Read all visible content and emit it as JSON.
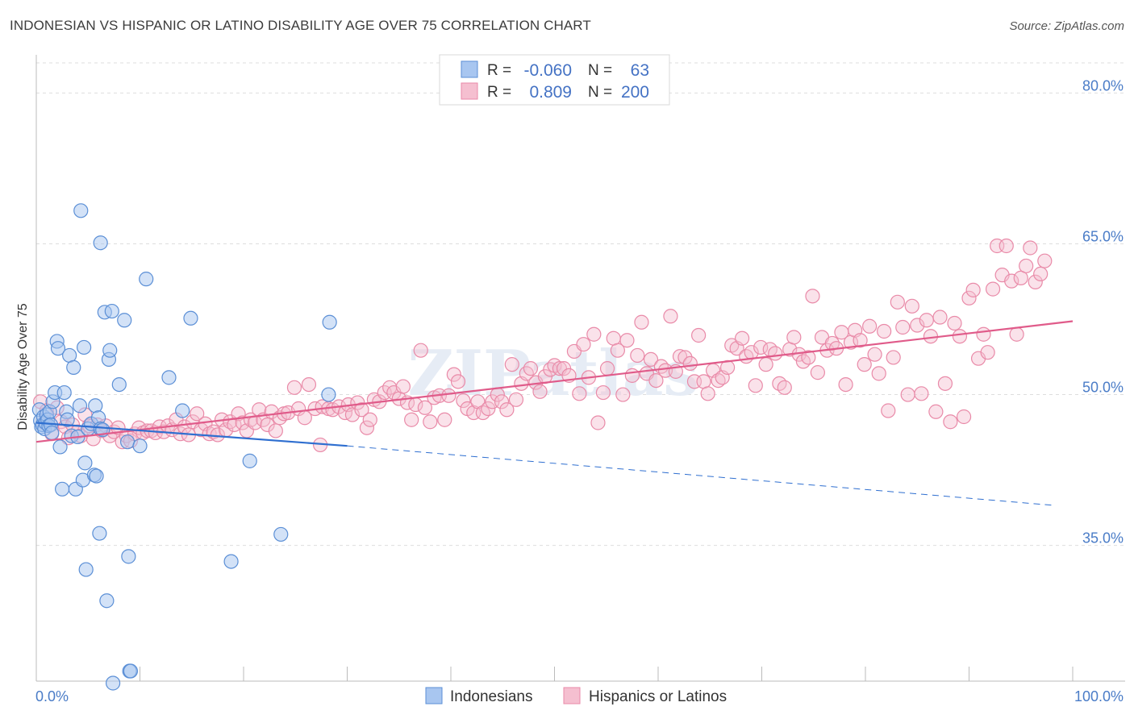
{
  "title": "INDONESIAN VS HISPANIC OR LATINO DISABILITY AGE OVER 75 CORRELATION CHART",
  "source": "Source: ZipAtlas.com",
  "watermark": "ZIPatlas",
  "colors": {
    "blue_fill": "#a8c6f0",
    "blue_stroke": "#5b8fd6",
    "blue_line": "#2f6fd0",
    "pink_fill": "#f5bfd0",
    "pink_stroke": "#e98aa8",
    "pink_line": "#e05b8a",
    "tick_text": "#4a7cc7",
    "grid": "#dddddd"
  },
  "legend": {
    "row1": {
      "r_label": "R =",
      "r_value": "-0.060",
      "n_label": "N =",
      "n_value": "63"
    },
    "row2": {
      "r_label": "R =",
      "r_value": "0.809",
      "n_label": "N =",
      "n_value": "200"
    }
  },
  "bottom_legend": {
    "series1": "Indonesians",
    "series2": "Hispanics or Latinos"
  },
  "chart_data": {
    "type": "scatter",
    "title": "INDONESIAN VS HISPANIC OR LATINO DISABILITY AGE OVER 75 CORRELATION CHART",
    "xlabel": "",
    "ylabel": "Disability Age Over 75",
    "xlim": [
      0,
      100
    ],
    "ylim": [
      21.5,
      83
    ],
    "x_tick_labels": [
      "0.0%",
      "100.0%"
    ],
    "y_ticks": [
      35,
      50,
      65,
      80
    ],
    "y_tick_labels": [
      "35.0%",
      "50.0%",
      "65.0%",
      "80.0%"
    ],
    "grid": "horizontal dashed",
    "legend_position": "top-center",
    "series": [
      {
        "name": "Indonesians",
        "r": -0.06,
        "n": 63,
        "trend": {
          "x0": 0,
          "y0": 47.2,
          "x1": 30,
          "y1": 44.9,
          "x_dashed_end": 98,
          "y_dashed_end": 39.0
        },
        "points": [
          [
            0.3,
            48.5
          ],
          [
            0.4,
            47.4
          ],
          [
            0.5,
            46.8
          ],
          [
            0.6,
            47.0
          ],
          [
            0.7,
            47.8
          ],
          [
            0.8,
            46.6
          ],
          [
            0.9,
            47.2
          ],
          [
            1.0,
            48.0
          ],
          [
            1.1,
            47.5
          ],
          [
            1.2,
            46.9
          ],
          [
            1.3,
            48.3
          ],
          [
            1.4,
            47.0
          ],
          [
            1.5,
            46.2
          ],
          [
            1.6,
            49.3
          ],
          [
            1.8,
            50.2
          ],
          [
            2.0,
            55.3
          ],
          [
            2.1,
            54.6
          ],
          [
            2.3,
            44.8
          ],
          [
            2.5,
            40.6
          ],
          [
            2.7,
            50.2
          ],
          [
            2.9,
            48.3
          ],
          [
            3.0,
            47.5
          ],
          [
            3.2,
            53.9
          ],
          [
            3.4,
            45.9
          ],
          [
            3.6,
            52.7
          ],
          [
            3.8,
            40.6
          ],
          [
            4.0,
            45.8
          ],
          [
            4.2,
            48.9
          ],
          [
            4.3,
            68.3
          ],
          [
            4.5,
            41.5
          ],
          [
            4.6,
            54.7
          ],
          [
            4.7,
            43.2
          ],
          [
            4.8,
            32.6
          ],
          [
            5.0,
            46.6
          ],
          [
            5.3,
            47.1
          ],
          [
            5.6,
            42.0
          ],
          [
            5.7,
            48.9
          ],
          [
            5.8,
            41.9
          ],
          [
            6.0,
            47.7
          ],
          [
            6.2,
            46.6
          ],
          [
            6.1,
            36.2
          ],
          [
            6.2,
            65.1
          ],
          [
            6.4,
            46.5
          ],
          [
            6.6,
            58.2
          ],
          [
            6.8,
            29.5
          ],
          [
            7.0,
            53.5
          ],
          [
            7.1,
            54.4
          ],
          [
            7.3,
            58.3
          ],
          [
            7.4,
            21.3
          ],
          [
            8.0,
            51.0
          ],
          [
            8.5,
            57.4
          ],
          [
            8.8,
            45.3
          ],
          [
            8.9,
            33.9
          ],
          [
            9.0,
            22.5
          ],
          [
            9.1,
            22.5
          ],
          [
            10.0,
            44.9
          ],
          [
            10.6,
            61.5
          ],
          [
            12.8,
            51.7
          ],
          [
            14.1,
            48.4
          ],
          [
            14.9,
            57.6
          ],
          [
            18.8,
            33.4
          ],
          [
            20.6,
            43.4
          ],
          [
            23.6,
            36.1
          ],
          [
            28.3,
            57.2
          ],
          [
            28.2,
            50.0
          ]
        ]
      },
      {
        "name": "Hispanics or Latinos",
        "r": 0.809,
        "n": 200,
        "trend": {
          "x0": 0,
          "y0": 45.3,
          "x1": 100,
          "y1": 57.3
        },
        "points": [
          [
            0.4,
            49.3
          ],
          [
            0.8,
            47.2
          ],
          [
            1.0,
            48.4
          ],
          [
            1.5,
            46.1
          ],
          [
            2.0,
            48.7
          ],
          [
            2.4,
            47.3
          ],
          [
            2.8,
            46.8
          ],
          [
            3.1,
            45.7
          ],
          [
            3.5,
            47.0
          ],
          [
            4.0,
            46.3
          ],
          [
            4.3,
            45.9
          ],
          [
            4.7,
            48.0
          ],
          [
            5.1,
            46.9
          ],
          [
            5.5,
            45.6
          ],
          [
            5.9,
            47.0
          ],
          [
            6.3,
            46.4
          ],
          [
            6.7,
            46.9
          ],
          [
            7.1,
            45.9
          ],
          [
            7.5,
            46.3
          ],
          [
            7.9,
            46.7
          ],
          [
            8.3,
            45.3
          ],
          [
            8.7,
            45.9
          ],
          [
            9.1,
            45.4
          ],
          [
            9.5,
            46.1
          ],
          [
            9.9,
            46.7
          ],
          [
            10.3,
            46.2
          ],
          [
            10.7,
            46.4
          ],
          [
            11.1,
            46.4
          ],
          [
            11.5,
            46.2
          ],
          [
            11.9,
            46.8
          ],
          [
            12.3,
            46.3
          ],
          [
            12.7,
            46.9
          ],
          [
            13.1,
            46.5
          ],
          [
            13.5,
            47.5
          ],
          [
            13.9,
            46.1
          ],
          [
            14.3,
            46.8
          ],
          [
            14.7,
            46.0
          ],
          [
            15.1,
            47.3
          ],
          [
            15.5,
            48.1
          ],
          [
            15.9,
            46.5
          ],
          [
            16.3,
            47.1
          ],
          [
            16.7,
            46.1
          ],
          [
            17.1,
            46.3
          ],
          [
            17.5,
            46.0
          ],
          [
            17.9,
            47.5
          ],
          [
            18.3,
            46.5
          ],
          [
            18.7,
            47.3
          ],
          [
            19.1,
            47.0
          ],
          [
            19.5,
            48.1
          ],
          [
            19.9,
            47.2
          ],
          [
            20.3,
            46.4
          ],
          [
            20.7,
            47.5
          ],
          [
            21.1,
            47.2
          ],
          [
            21.5,
            48.5
          ],
          [
            21.9,
            47.5
          ],
          [
            22.3,
            47.0
          ],
          [
            22.7,
            48.3
          ],
          [
            23.1,
            46.4
          ],
          [
            23.5,
            47.7
          ],
          [
            23.9,
            48.1
          ],
          [
            24.3,
            48.2
          ],
          [
            24.9,
            50.7
          ],
          [
            25.3,
            48.6
          ],
          [
            25.9,
            47.7
          ],
          [
            26.3,
            51.0
          ],
          [
            26.9,
            48.6
          ],
          [
            27.4,
            45.0
          ],
          [
            27.6,
            48.8
          ],
          [
            28.2,
            48.6
          ],
          [
            28.6,
            48.5
          ],
          [
            29.2,
            48.8
          ],
          [
            29.8,
            48.2
          ],
          [
            30.1,
            49.0
          ],
          [
            30.5,
            48.0
          ],
          [
            31.0,
            49.2
          ],
          [
            31.4,
            48.5
          ],
          [
            31.9,
            46.7
          ],
          [
            32.2,
            47.5
          ],
          [
            32.6,
            49.5
          ],
          [
            33.1,
            49.3
          ],
          [
            33.6,
            50.2
          ],
          [
            34.1,
            50.7
          ],
          [
            34.5,
            50.2
          ],
          [
            35.0,
            49.6
          ],
          [
            35.4,
            50.8
          ],
          [
            35.8,
            49.2
          ],
          [
            36.2,
            47.5
          ],
          [
            36.6,
            49.0
          ],
          [
            37.1,
            54.4
          ],
          [
            37.5,
            48.7
          ],
          [
            38.0,
            47.3
          ],
          [
            38.4,
            49.7
          ],
          [
            38.9,
            49.9
          ],
          [
            39.4,
            47.5
          ],
          [
            39.8,
            49.9
          ],
          [
            40.3,
            52.0
          ],
          [
            40.7,
            51.3
          ],
          [
            41.2,
            49.4
          ],
          [
            41.6,
            48.6
          ],
          [
            42.2,
            48.2
          ],
          [
            42.6,
            49.3
          ],
          [
            43.1,
            48.2
          ],
          [
            43.6,
            48.6
          ],
          [
            44.0,
            49.3
          ],
          [
            44.5,
            50.0
          ],
          [
            44.9,
            49.3
          ],
          [
            45.4,
            48.5
          ],
          [
            45.9,
            53.0
          ],
          [
            46.3,
            49.5
          ],
          [
            46.8,
            51.1
          ],
          [
            47.3,
            52.1
          ],
          [
            47.7,
            52.6
          ],
          [
            48.2,
            51.2
          ],
          [
            48.6,
            50.3
          ],
          [
            49.1,
            51.8
          ],
          [
            49.6,
            52.5
          ],
          [
            50.0,
            52.9
          ],
          [
            50.5,
            52.6
          ],
          [
            50.9,
            52.6
          ],
          [
            51.4,
            51.9
          ],
          [
            51.9,
            54.3
          ],
          [
            52.4,
            50.1
          ],
          [
            52.8,
            55.0
          ],
          [
            53.3,
            51.7
          ],
          [
            53.8,
            56.0
          ],
          [
            54.2,
            47.2
          ],
          [
            54.7,
            50.2
          ],
          [
            55.1,
            52.6
          ],
          [
            55.7,
            55.6
          ],
          [
            56.1,
            54.4
          ],
          [
            56.6,
            50.0
          ],
          [
            57.0,
            55.4
          ],
          [
            57.5,
            51.9
          ],
          [
            58.0,
            53.9
          ],
          [
            58.4,
            57.2
          ],
          [
            58.9,
            52.1
          ],
          [
            59.3,
            53.5
          ],
          [
            59.8,
            51.4
          ],
          [
            60.3,
            52.8
          ],
          [
            60.7,
            52.4
          ],
          [
            61.2,
            57.8
          ],
          [
            61.7,
            52.3
          ],
          [
            62.1,
            53.8
          ],
          [
            62.6,
            53.7
          ],
          [
            63.1,
            53.1
          ],
          [
            63.5,
            51.3
          ],
          [
            63.9,
            55.9
          ],
          [
            64.4,
            51.3
          ],
          [
            64.8,
            50.1
          ],
          [
            65.3,
            52.4
          ],
          [
            65.8,
            51.4
          ],
          [
            66.2,
            51.7
          ],
          [
            66.7,
            52.7
          ],
          [
            67.1,
            54.9
          ],
          [
            67.6,
            54.6
          ],
          [
            68.1,
            55.6
          ],
          [
            68.5,
            53.8
          ],
          [
            69.0,
            54.2
          ],
          [
            69.4,
            50.9
          ],
          [
            69.9,
            54.7
          ],
          [
            70.4,
            53.0
          ],
          [
            70.8,
            54.5
          ],
          [
            71.3,
            54.1
          ],
          [
            71.7,
            51.1
          ],
          [
            72.2,
            50.7
          ],
          [
            72.7,
            54.5
          ],
          [
            73.1,
            55.7
          ],
          [
            73.6,
            54.0
          ],
          [
            74.0,
            53.3
          ],
          [
            74.5,
            53.7
          ],
          [
            74.9,
            59.8
          ],
          [
            75.4,
            52.2
          ],
          [
            75.8,
            55.7
          ],
          [
            76.3,
            54.4
          ],
          [
            76.8,
            55.1
          ],
          [
            77.2,
            54.6
          ],
          [
            77.7,
            56.2
          ],
          [
            78.1,
            51.0
          ],
          [
            78.6,
            55.2
          ],
          [
            79.0,
            56.4
          ],
          [
            79.5,
            55.4
          ],
          [
            79.9,
            53.0
          ],
          [
            80.4,
            56.8
          ],
          [
            80.9,
            54.0
          ],
          [
            81.3,
            52.1
          ],
          [
            81.8,
            56.3
          ],
          [
            82.2,
            48.4
          ],
          [
            82.7,
            53.7
          ],
          [
            83.1,
            59.2
          ],
          [
            83.6,
            56.7
          ],
          [
            84.1,
            50.0
          ],
          [
            84.5,
            58.8
          ],
          [
            85.0,
            56.9
          ],
          [
            85.4,
            50.1
          ],
          [
            85.9,
            57.4
          ],
          [
            86.3,
            55.8
          ],
          [
            86.8,
            48.3
          ],
          [
            87.2,
            57.7
          ],
          [
            87.7,
            51.1
          ],
          [
            88.2,
            47.3
          ],
          [
            88.6,
            57.1
          ],
          [
            89.1,
            55.8
          ],
          [
            89.5,
            47.8
          ],
          [
            90.0,
            59.6
          ],
          [
            90.4,
            60.4
          ],
          [
            90.9,
            53.6
          ],
          [
            91.4,
            56.0
          ],
          [
            91.8,
            54.2
          ],
          [
            92.3,
            60.5
          ],
          [
            92.7,
            64.8
          ],
          [
            93.2,
            61.9
          ],
          [
            93.6,
            64.8
          ],
          [
            94.1,
            61.3
          ],
          [
            94.6,
            56.0
          ],
          [
            95.0,
            61.6
          ],
          [
            95.5,
            62.8
          ],
          [
            95.9,
            64.6
          ],
          [
            96.4,
            61.2
          ],
          [
            96.9,
            62.0
          ],
          [
            97.3,
            63.3
          ]
        ]
      }
    ]
  }
}
